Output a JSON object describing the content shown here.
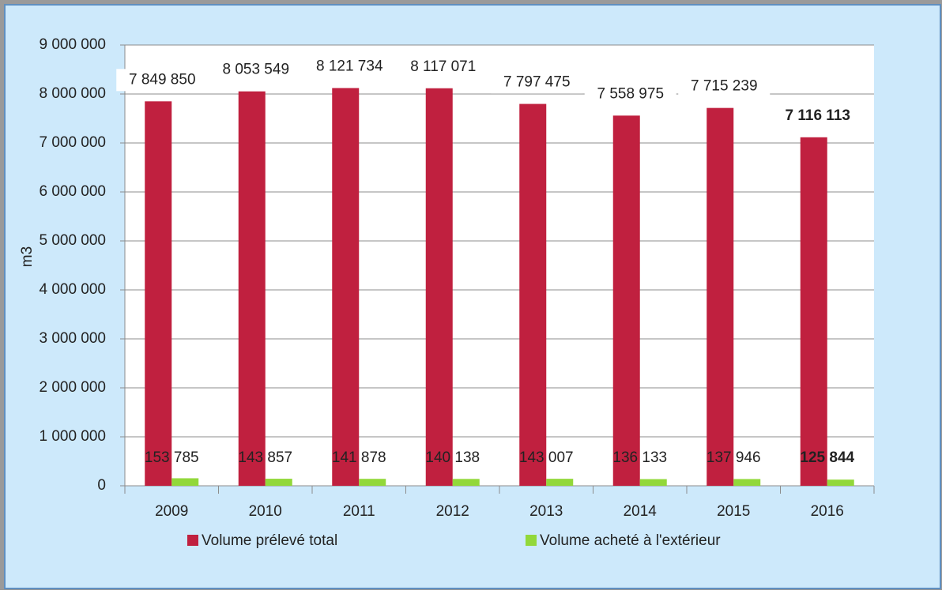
{
  "chart_data": {
    "type": "bar",
    "y_label": "m3",
    "categories": [
      "2009",
      "2010",
      "2011",
      "2012",
      "2013",
      "2014",
      "2015",
      "2016"
    ],
    "series": [
      {
        "name": "Volume prélevé total",
        "color": "#c0203f",
        "values": [
          7849850,
          8053549,
          8121734,
          8117071,
          7797475,
          7558975,
          7715239,
          7116113
        ],
        "value_labels": [
          "7 849 850",
          "8 053 549",
          "8 121 734",
          "8 117 071",
          "7 797 475",
          "7 558 975",
          "7 715 239",
          "7 116 113"
        ]
      },
      {
        "name": "Volume acheté à l'extérieur",
        "color": "#92d83a",
        "values": [
          153785,
          143857,
          141878,
          140138,
          143007,
          136133,
          137946,
          125844
        ],
        "value_labels": [
          "153 785",
          "143 857",
          "141 878",
          "140 138",
          "143 007",
          "136 133",
          "137 946",
          "125 844"
        ]
      }
    ],
    "ylim": [
      0,
      9000000
    ],
    "yticks": [
      0,
      {
        "value": 1000000,
        "label": "1 000 000"
      },
      {
        "value": 2000000,
        "label": "2 000 000"
      },
      {
        "value": 3000000,
        "label": "3 000 000"
      },
      {
        "value": 4000000,
        "label": "4 000 000"
      },
      {
        "value": 5000000,
        "label": "5 000 000"
      },
      {
        "value": 6000000,
        "label": "6 000 000"
      },
      {
        "value": 7000000,
        "label": "7 000 000"
      },
      {
        "value": 8000000,
        "label": "8 000 000"
      },
      {
        "value": 9000000,
        "label": "9 000 000"
      }
    ],
    "grid": true,
    "legend": "bottom"
  }
}
